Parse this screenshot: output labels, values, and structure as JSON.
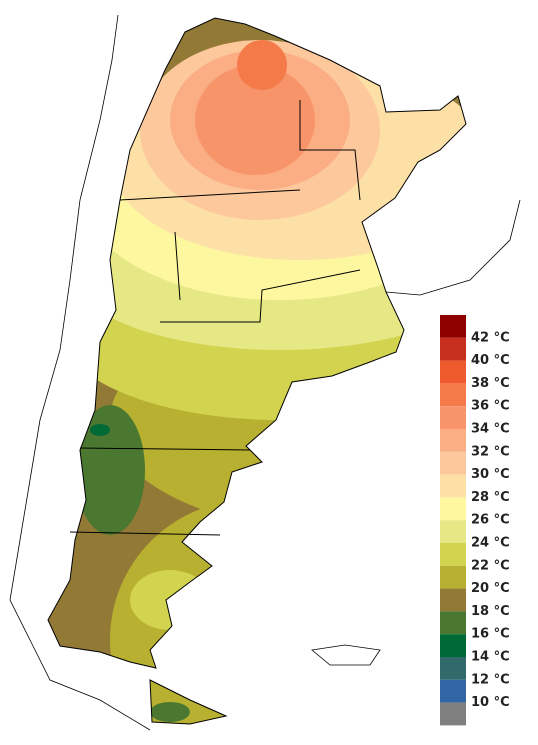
{
  "legend": {
    "items": [
      {
        "label": null,
        "color": "#8e0000"
      },
      {
        "label": "42 °C",
        "color": "#c8301e"
      },
      {
        "label": "40 °C",
        "color": "#ee5a2c"
      },
      {
        "label": "38 °C",
        "color": "#f47a4a"
      },
      {
        "label": "36 °C",
        "color": "#f8946a"
      },
      {
        "label": "34 °C",
        "color": "#fbae84"
      },
      {
        "label": "32 °C",
        "color": "#fcc89c"
      },
      {
        "label": "30 °C",
        "color": "#fde0a6"
      },
      {
        "label": "28 °C",
        "color": "#fdf8a0"
      },
      {
        "label": "26 °C",
        "color": "#e6e886"
      },
      {
        "label": "24 °C",
        "color": "#d2d450"
      },
      {
        "label": "22 °C",
        "color": "#b8b030"
      },
      {
        "label": "20 °C",
        "color": "#927a36"
      },
      {
        "label": "18 °C",
        "color": "#4a7830"
      },
      {
        "label": "16 °C",
        "color": "#006a36"
      },
      {
        "label": "14 °C",
        "color": "#306a6a"
      },
      {
        "label": "12 °C",
        "color": "#3066a4"
      },
      {
        "label": "10 °C",
        "color": "#808080"
      }
    ]
  }
}
